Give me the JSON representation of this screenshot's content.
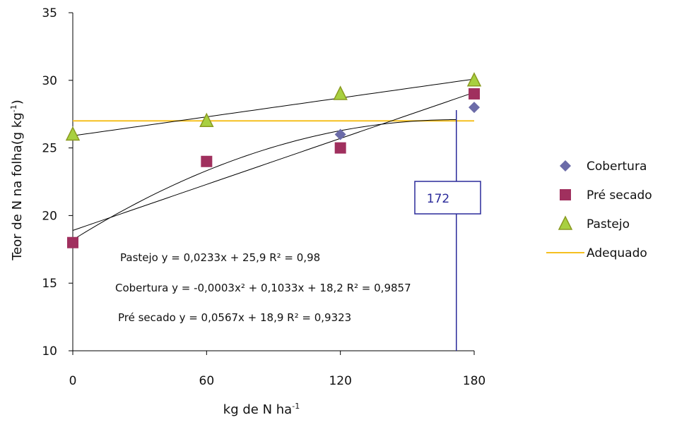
{
  "chart_data": {
    "type": "scatter",
    "ylabel": "Teor de N na folha(g kg",
    "ylabel_sup": "-1",
    "ylabel_end": ")",
    "xlabel": "kg de N ha",
    "xlabel_sup": "-1",
    "xlim": [
      0,
      180
    ],
    "xticks": [
      0,
      60,
      120,
      180
    ],
    "ylim": [
      10,
      35
    ],
    "yticks": [
      10,
      15,
      20,
      25,
      30,
      35
    ],
    "grid": false,
    "legend": "right",
    "x": [
      0,
      60,
      120,
      180
    ],
    "series": [
      {
        "name": "Cobertura",
        "color": "#6b6ba8",
        "marker": "diamond",
        "values": [
          18,
          24,
          26,
          28
        ]
      },
      {
        "name": "Pré secado",
        "color": "#a0305e",
        "marker": "square",
        "values": [
          18,
          24,
          25,
          29
        ]
      },
      {
        "name": "Pastejo",
        "color": "#a8d040",
        "marker": "triangle",
        "values": [
          26,
          27,
          29,
          30
        ]
      }
    ],
    "reference": {
      "name": "Adequado",
      "color": "#f5c020",
      "value": 27
    },
    "trendlines": [
      {
        "coefficients": [
          0.0233,
          25.9
        ],
        "label": "Pastejo y = 0,0233x + 25,9 R² = 0,98"
      },
      {
        "coefficients": [
          -0.0003,
          0.1033,
          18.2
        ],
        "label": "Cobertura y = -0,0003x² + 0,1033x + 18,2 R² = 0,9857"
      },
      {
        "coefficients": [
          0.0567,
          18.9
        ],
        "label": "Pré secado y = 0,0567x + 18,9 R² = 0,9323"
      }
    ],
    "marker_line": 172
  }
}
